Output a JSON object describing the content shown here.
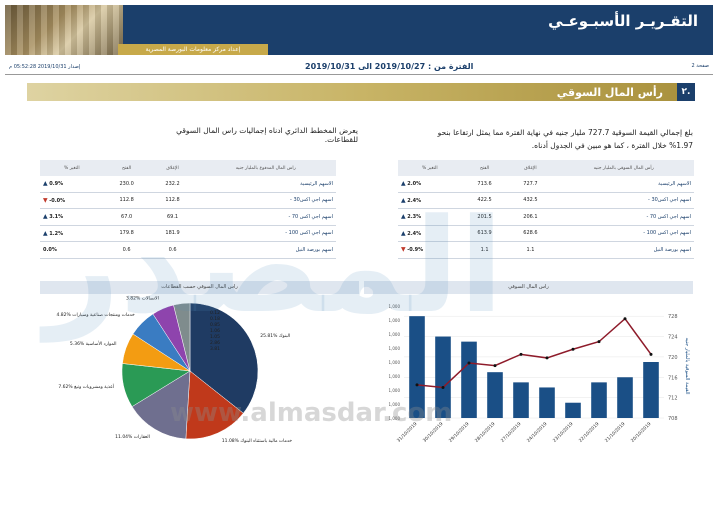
{
  "header": {
    "title": "التقـريـر الأسبـوعـي",
    "subtitle": "إعداد مركز معلومات البورصة المصرية"
  },
  "datebar": {
    "page": "صفحة 2",
    "period": "الفترة من : 2019/10/27 الى 2019/10/31",
    "issued": "إصدار 2019/10/31 05:52:28 م"
  },
  "section": {
    "number": "٢.",
    "title": "رأس المال السوقي"
  },
  "paragraph_right": "بلغ إجمالي القيمة السوقية 727.7 مليار جنيه في نهاية الفترة مما يمثل ارتفاعا بنحو 1.97% خلال الفترة ، كما هو مبين في الجدول أدناه.",
  "paragraph_left": "يعرض المخطط الدائري ادناه إجماليات راس المال السوقي للقطاعات.",
  "table_market": {
    "headers": [
      "رأس المال السوقي بالمليار جنيه",
      "الإغلاق",
      "الفتح",
      "% التغير"
    ],
    "rows": [
      {
        "name": "الاسهم الرئيسية",
        "close": "727.7",
        "open": "713.6",
        "change": "2.0%",
        "dir": "up"
      },
      {
        "name": "- اسهم اجي اكس30",
        "close": "432.5",
        "open": "422.5",
        "change": "2.4%",
        "dir": "up"
      },
      {
        "name": "- اسهم اجي اكس 70",
        "close": "206.1",
        "open": "201.5",
        "change": "2.3%",
        "dir": "up"
      },
      {
        "name": "- اسهم اجي اكس 100",
        "close": "628.6",
        "open": "613.9",
        "change": "2.4%",
        "dir": "up"
      },
      {
        "name": "اسهم بورصة النيل",
        "close": "1.1",
        "open": "1.1",
        "change": "-0.9%",
        "dir": "down"
      }
    ]
  },
  "table_paid": {
    "headers": [
      "راس المال المدفوع بالمليار جنيه",
      "الإغلاق",
      "الفتح",
      "% التغير"
    ],
    "rows": [
      {
        "name": "الاسهم الرئيسية",
        "close": "232.2",
        "open": "230.0",
        "change": "0.9%",
        "dir": "up"
      },
      {
        "name": "- اسهم اجي اكس30",
        "close": "112.8",
        "open": "112.8",
        "change": "-0.0%",
        "dir": "down"
      },
      {
        "name": "- اسهم اجي اكس 70",
        "close": "69.1",
        "open": "67.0",
        "change": "3.1%",
        "dir": "up"
      },
      {
        "name": "- اسهم اجي اكس 100",
        "close": "181.9",
        "open": "179.8",
        "change": "1.2%",
        "dir": "up"
      },
      {
        "name": "اسهم بورصة النيل",
        "close": "0.6",
        "open": "0.6",
        "change": "0.0%",
        "dir": "none"
      }
    ]
  },
  "chart_heads": {
    "market": "راس المال السوقي",
    "sectors": "راس المال السوقي حسب القطاعات"
  },
  "chart_data": [
    {
      "type": "bar",
      "categories": [
        "31/10/2019",
        "30/10/2019",
        "29/10/2019",
        "28/10/2019",
        "27/10/2019",
        "24/10/2019",
        "23/10/2019",
        "22/10/2019",
        "21/10/2019",
        "20/10/2019"
      ],
      "series": [
        {
          "values": [
            728,
            724,
            723,
            717,
            715,
            714,
            711,
            715,
            716,
            719
          ]
        },
        {
          "values": [
            714.5,
            714.0,
            718.8,
            718.3,
            720.5,
            719.8,
            721.5,
            723.0,
            727.5,
            720.5
          ]
        }
      ],
      "ylabel": "القيمة السوقية بالمليار جنيه",
      "y_ticks_right": [
        "728",
        "724",
        "720",
        "716",
        "712",
        "708"
      ],
      "y_ticks_left": [
        "1,000",
        "1,000",
        "1,000",
        "1,000",
        "1,000",
        "1,000",
        "1,000",
        "1,000",
        "1,000"
      ]
    },
    {
      "type": "pie",
      "labels": [
        "البنوك",
        "خدمات مالية باستثناء البنوك",
        "العقارات",
        "أغذية ومشروبات وتبغ",
        "الموارد الأساسية",
        "خدمات ومنتجات صناعية وسيارات",
        "الاتصالات",
        "منتجات منزلية وشخصية"
      ],
      "values": [
        25.81,
        11.08,
        11.04,
        7.62,
        5.36,
        4.82,
        3.82,
        2.82
      ],
      "small_labels": [
        "0.12",
        "0.18",
        "0.85",
        "1.06",
        "1.05",
        "2.86",
        "3.81"
      ],
      "colors": [
        "#1f3b63",
        "#c0391b",
        "#6f6f8f",
        "#2a9a55",
        "#f39c12",
        "#3a7cc2",
        "#8e44ad",
        "#7f8c8d"
      ]
    }
  ],
  "watermark": {
    "text": "المصدر",
    "url": "www.almasdar.com"
  }
}
